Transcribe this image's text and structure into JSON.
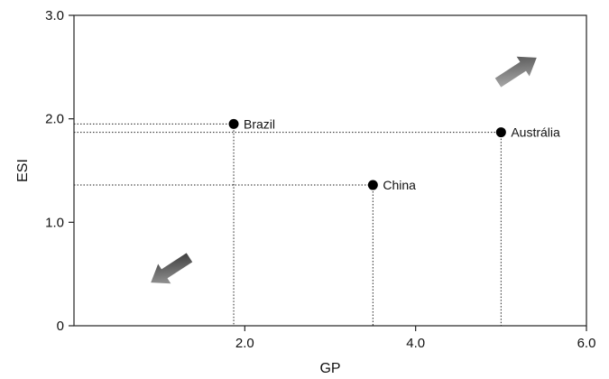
{
  "chart_data": {
    "type": "scatter",
    "title": "",
    "xlabel": "GP",
    "ylabel": "ESI",
    "xlim": [
      0,
      6.0
    ],
    "ylim": [
      0,
      3.0
    ],
    "x_ticks": [
      {
        "value": 2.0,
        "label": "2.0"
      },
      {
        "value": 4.0,
        "label": "4.0"
      },
      {
        "value": 6.0,
        "label": "6.0"
      }
    ],
    "y_ticks": [
      {
        "value": 0,
        "label": "0"
      },
      {
        "value": 1.0,
        "label": "1.0"
      },
      {
        "value": 2.0,
        "label": "2.0"
      },
      {
        "value": 3.0,
        "label": "3.0"
      }
    ],
    "grid": false,
    "points": [
      {
        "label": "Brazil",
        "x": 1.87,
        "y": 1.95
      },
      {
        "label": "China",
        "x": 3.5,
        "y": 1.36
      },
      {
        "label": "Austrália",
        "x": 5.0,
        "y": 1.87
      }
    ],
    "guide_lines": true,
    "arrows": [
      {
        "direction": "up-right",
        "color": "#777777"
      },
      {
        "direction": "down-left",
        "color": "#555555"
      }
    ]
  }
}
